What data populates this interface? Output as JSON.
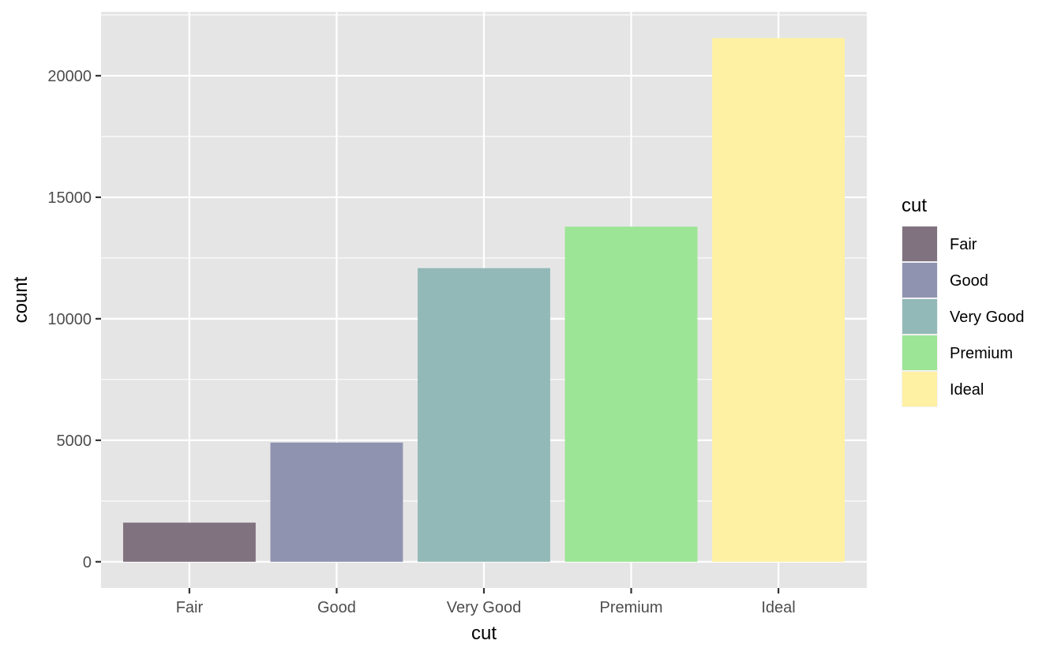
{
  "chart_data": {
    "type": "bar",
    "categories": [
      "Fair",
      "Good",
      "Very Good",
      "Premium",
      "Ideal"
    ],
    "values": [
      1610,
      4906,
      12082,
      13791,
      21551
    ],
    "colors": [
      "#80737f",
      "#8f93b0",
      "#92b9b7",
      "#9ce596",
      "#fff1a3"
    ],
    "xlabel": "cut",
    "ylabel": "count",
    "ylim": [
      0,
      22500
    ],
    "yticks": [
      0,
      5000,
      10000,
      15000,
      20000
    ],
    "ytick_labels": [
      "0",
      "5000",
      "10000",
      "15000",
      "20000"
    ],
    "grid": true,
    "panel_background": "#e5e5e5",
    "grid_color": "#ffffff",
    "legend": {
      "title": "cut",
      "placement": "right",
      "entries": [
        "Fair",
        "Good",
        "Very Good",
        "Premium",
        "Ideal"
      ]
    }
  }
}
